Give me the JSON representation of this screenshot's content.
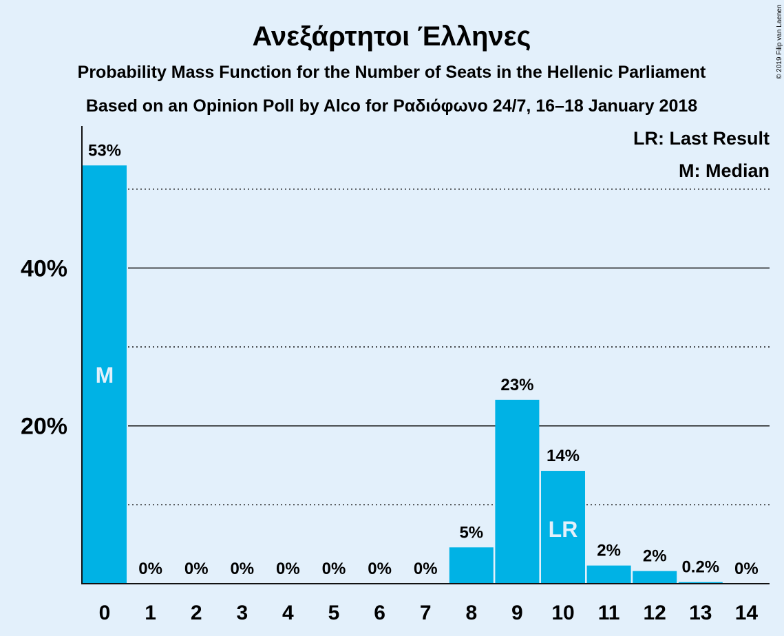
{
  "title": "Ανεξάρτητοι Έλληνες",
  "subtitle1": "Probability Mass Function for the Number of Seats in the Hellenic Parliament",
  "subtitle2": "Based on an Opinion Poll by Alco for Ραδιόφωνο 24/7, 16–18 January 2018",
  "copyright": "© 2019 Filip van Laenen",
  "colors": {
    "bar": "#00b2e5",
    "background": "#e3f0fb",
    "axis": "#111111"
  },
  "legend": {
    "last_result": "LR: Last Result",
    "median": "M: Median"
  },
  "chart_data": {
    "type": "bar",
    "categories": [
      "0",
      "1",
      "2",
      "3",
      "4",
      "5",
      "6",
      "7",
      "8",
      "9",
      "10",
      "11",
      "12",
      "13",
      "14"
    ],
    "values": [
      53,
      0,
      0,
      0,
      0,
      0,
      0,
      0,
      4.6,
      23.3,
      14.3,
      2.3,
      1.6,
      0.2,
      0
    ],
    "labels": [
      "53%",
      "0%",
      "0%",
      "0%",
      "0%",
      "0%",
      "0%",
      "0%",
      "5%",
      "23%",
      "14%",
      "2%",
      "2%",
      "0.2%",
      "0%"
    ],
    "ylim": [
      0,
      58
    ],
    "yticks": [
      {
        "value": 20,
        "label": "20%"
      },
      {
        "value": 40,
        "label": "40%"
      }
    ],
    "minor_gridlines": [
      10,
      30,
      50
    ],
    "markers": [
      {
        "category": "0",
        "text": "M",
        "meaning": "Median"
      },
      {
        "category": "10",
        "text": "LR",
        "meaning": "Last Result"
      }
    ],
    "grid": true,
    "legend_position": "top-right"
  }
}
